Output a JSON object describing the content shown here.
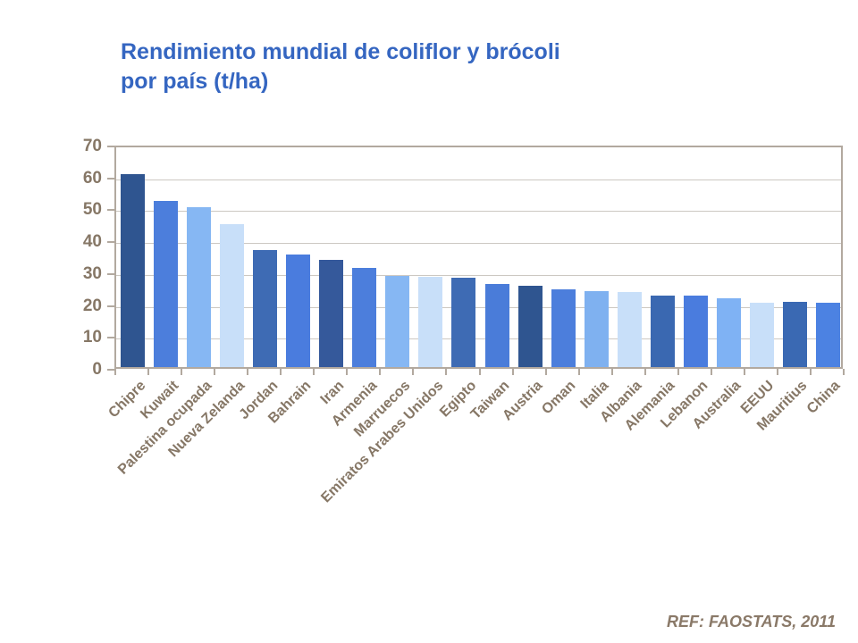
{
  "title": "Rendimiento mundial de coliflor y brócoli\npor país (t/ha)",
  "footer": "REF: FAOSTATS, 2011",
  "colors": {
    "title_text": "#3566C1",
    "axis_text": "#867766",
    "axis_line": "#B2A99F",
    "gridline": "#CCC8C2",
    "footer_text": "#8A7968",
    "background": "#FFFFFF"
  },
  "chart_data": {
    "type": "bar",
    "title": "Rendimiento mundial de coliflor y brócoli por país (t/ha)",
    "xlabel": "",
    "ylabel": "",
    "ylim": [
      0,
      70
    ],
    "yticks": [
      0,
      10,
      20,
      30,
      40,
      50,
      60,
      70
    ],
    "grid": true,
    "legend": false,
    "categories": [
      "Chipre",
      "Kuwait",
      "Palestina ocupada",
      "Nueva Zelanda",
      "Jordan",
      "Bahrain",
      "Iran",
      "Armenia",
      "Marruecos",
      "Emiratos Arabes Unidos",
      "Egipto",
      "Taiwan",
      "Austria",
      "Oman",
      "Italia",
      "Albania",
      "Alemania",
      "Lebanon",
      "Australia",
      "EEUU",
      "Mauritius",
      "China"
    ],
    "values": [
      60.5,
      52.0,
      50.2,
      44.8,
      36.6,
      35.4,
      33.6,
      31.2,
      28.6,
      28.4,
      27.9,
      26.1,
      25.5,
      24.5,
      23.9,
      23.5,
      22.4,
      22.3,
      21.6,
      20.3,
      20.4,
      20.1
    ],
    "bar_colors": [
      "#2F5590",
      "#4C7EDC",
      "#86B7F3",
      "#C8DFF9",
      "#3E6BB4",
      "#4A7CDE",
      "#35599B",
      "#4C7EDC",
      "#86B7F3",
      "#C8DFF9",
      "#3E6BB4",
      "#4A7CD9",
      "#2F5590",
      "#4C7EDC",
      "#7FB1F0",
      "#C8DFF9",
      "#3A68B1",
      "#4A7CDE",
      "#7FB2F4",
      "#C8DFF9",
      "#3A69B3",
      "#4C82E2"
    ]
  }
}
